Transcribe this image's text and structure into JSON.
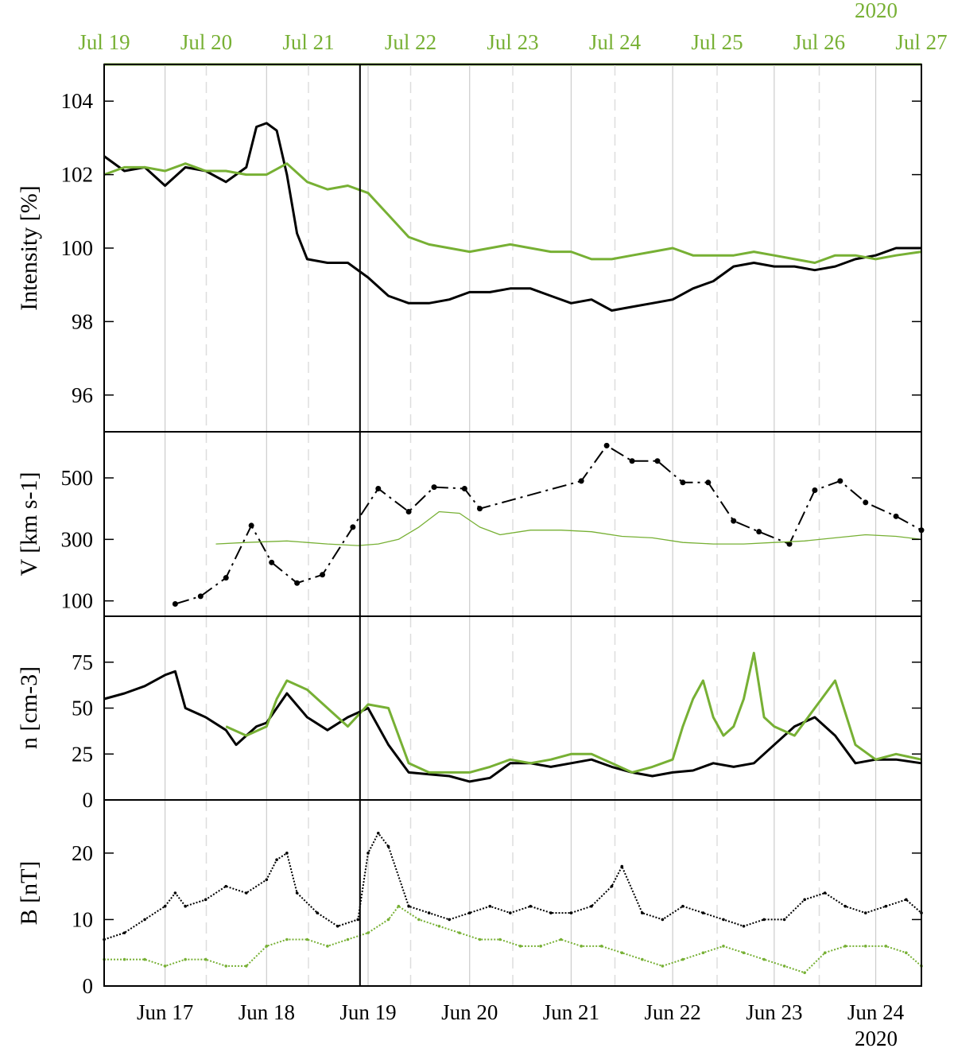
{
  "colors": {
    "series_black": "#000000",
    "series_green": "#77b034",
    "grid_solid": "#cccccc",
    "grid_dashed": "#dddddd",
    "event_line": "#000000"
  },
  "top_axis": {
    "year": "2020",
    "ticks": [
      "Jul 19",
      "Jul 20",
      "Jul 21",
      "Jul 22",
      "Jul 23",
      "Jul 24",
      "Jul 25",
      "Jul 26",
      "Jul 27"
    ]
  },
  "bottom_axis": {
    "year": "2020",
    "ticks": [
      "Jun 17",
      "Jun 18",
      "Jun 19",
      "Jun 20",
      "Jun 21",
      "Jun 22",
      "Jun 23",
      "Jun 24"
    ]
  },
  "chart_data": [
    {
      "type": "line",
      "panel": "intensity",
      "ylabel": "Intensity [%]",
      "ylim": [
        95,
        105
      ],
      "yticks": [
        "96",
        "98",
        "100",
        "102",
        "104"
      ],
      "xlim": [
        16.4,
        24.45
      ],
      "event_line_x": 18.92,
      "series": [
        {
          "color": "black",
          "x": [
            16.4,
            16.6,
            16.8,
            17.0,
            17.2,
            17.4,
            17.6,
            17.7,
            17.8,
            17.9,
            18.0,
            18.1,
            18.2,
            18.3,
            18.4,
            18.6,
            18.8,
            19.0,
            19.2,
            19.4,
            19.6,
            19.8,
            20.0,
            20.2,
            20.4,
            20.6,
            20.8,
            21.0,
            21.2,
            21.4,
            21.6,
            21.8,
            22.0,
            22.2,
            22.4,
            22.6,
            22.8,
            23.0,
            23.2,
            23.4,
            23.6,
            23.8,
            24.0,
            24.2,
            24.45
          ],
          "y": [
            102.5,
            102.1,
            102.2,
            101.7,
            102.2,
            102.1,
            101.8,
            102.0,
            102.2,
            103.3,
            103.4,
            103.2,
            102.0,
            100.4,
            99.7,
            99.6,
            99.6,
            99.2,
            98.7,
            98.5,
            98.5,
            98.6,
            98.8,
            98.8,
            98.9,
            98.9,
            98.7,
            98.5,
            98.6,
            98.3,
            98.4,
            98.5,
            98.6,
            98.9,
            99.1,
            99.5,
            99.6,
            99.5,
            99.5,
            99.4,
            99.5,
            99.7,
            99.8,
            100.0,
            100.0
          ]
        },
        {
          "color": "green",
          "x": [
            16.4,
            16.6,
            16.8,
            17.0,
            17.2,
            17.4,
            17.6,
            17.8,
            18.0,
            18.2,
            18.4,
            18.6,
            18.8,
            19.0,
            19.2,
            19.4,
            19.6,
            19.8,
            20.0,
            20.2,
            20.4,
            20.6,
            20.8,
            21.0,
            21.2,
            21.4,
            21.6,
            21.8,
            22.0,
            22.2,
            22.4,
            22.6,
            22.8,
            23.0,
            23.2,
            23.4,
            23.6,
            23.8,
            24.0,
            24.2,
            24.45
          ],
          "y": [
            102.0,
            102.2,
            102.2,
            102.1,
            102.3,
            102.1,
            102.1,
            102.0,
            102.0,
            102.3,
            101.8,
            101.6,
            101.7,
            101.5,
            100.9,
            100.3,
            100.1,
            100.0,
            99.9,
            100.0,
            100.1,
            100.0,
            99.9,
            99.9,
            99.7,
            99.7,
            99.8,
            99.9,
            100.0,
            99.8,
            99.8,
            99.8,
            99.9,
            99.8,
            99.7,
            99.6,
            99.8,
            99.8,
            99.7,
            99.8,
            99.9
          ]
        }
      ]
    },
    {
      "type": "line",
      "panel": "speed",
      "ylabel": "V [km s-1]",
      "ylim": [
        50,
        650
      ],
      "yticks": [
        "100",
        "300",
        "500"
      ],
      "xlim": [
        16.4,
        24.45
      ],
      "series": [
        {
          "color": "black",
          "style": "dash-dot with dots",
          "x": [
            17.1,
            17.35,
            17.6,
            17.85,
            18.05,
            18.3,
            18.55,
            18.85,
            19.1,
            19.4,
            19.65,
            19.95,
            20.1,
            21.1,
            21.35,
            21.6,
            21.85,
            22.1,
            22.35,
            22.6,
            22.85,
            23.15,
            23.4,
            23.65,
            23.9,
            24.2,
            24.45
          ],
          "y": [
            90,
            115,
            175,
            345,
            225,
            158,
            185,
            340,
            465,
            390,
            470,
            465,
            400,
            490,
            605,
            555,
            555,
            485,
            485,
            360,
            325,
            285,
            460,
            490,
            420,
            375,
            330
          ]
        },
        {
          "color": "green",
          "x": [
            17.5,
            17.8,
            18.2,
            18.6,
            18.9,
            19.1,
            19.3,
            19.5,
            19.7,
            19.9,
            20.1,
            20.3,
            20.6,
            20.9,
            21.2,
            21.5,
            21.8,
            22.1,
            22.4,
            22.7,
            23.0,
            23.3,
            23.6,
            23.9,
            24.2,
            24.45
          ],
          "y": [
            285,
            290,
            295,
            285,
            280,
            285,
            300,
            340,
            390,
            385,
            340,
            315,
            330,
            330,
            325,
            310,
            305,
            290,
            285,
            285,
            290,
            295,
            305,
            315,
            310,
            300
          ]
        }
      ]
    },
    {
      "type": "line",
      "panel": "density",
      "ylabel": "n [cm-3]",
      "ylim": [
        0,
        100
      ],
      "yticks": [
        "0",
        "25",
        "50",
        "75"
      ],
      "xlim": [
        16.4,
        24.45
      ],
      "series": [
        {
          "color": "black",
          "x": [
            16.4,
            16.6,
            16.8,
            17.0,
            17.1,
            17.2,
            17.4,
            17.6,
            17.7,
            17.9,
            18.0,
            18.1,
            18.2,
            18.4,
            18.6,
            18.8,
            19.0,
            19.2,
            19.4,
            19.6,
            19.8,
            20.0,
            20.2,
            20.4,
            20.6,
            20.8,
            21.0,
            21.2,
            21.4,
            21.6,
            21.8,
            22.0,
            22.2,
            22.4,
            22.6,
            22.8,
            23.0,
            23.2,
            23.4,
            23.6,
            23.8,
            24.0,
            24.2,
            24.45
          ],
          "y": [
            55,
            58,
            62,
            68,
            70,
            50,
            45,
            38,
            30,
            40,
            42,
            50,
            58,
            45,
            38,
            45,
            50,
            30,
            15,
            14,
            13,
            10,
            12,
            20,
            20,
            18,
            20,
            22,
            18,
            15,
            13,
            15,
            16,
            20,
            18,
            20,
            30,
            40,
            45,
            35,
            20,
            22,
            22,
            20
          ]
        },
        {
          "color": "green",
          "x": [
            17.6,
            17.8,
            18.0,
            18.1,
            18.2,
            18.4,
            18.6,
            18.8,
            19.0,
            19.2,
            19.4,
            19.6,
            19.8,
            20.0,
            20.2,
            20.4,
            20.6,
            20.8,
            21.0,
            21.2,
            21.4,
            21.6,
            21.8,
            22.0,
            22.1,
            22.2,
            22.3,
            22.4,
            22.5,
            22.6,
            22.7,
            22.8,
            22.9,
            23.0,
            23.2,
            23.4,
            23.6,
            23.8,
            24.0,
            24.2,
            24.45
          ],
          "y": [
            40,
            35,
            40,
            55,
            65,
            60,
            50,
            40,
            52,
            50,
            20,
            15,
            15,
            15,
            18,
            22,
            20,
            22,
            25,
            25,
            20,
            15,
            18,
            22,
            40,
            55,
            65,
            45,
            35,
            40,
            55,
            80,
            45,
            40,
            35,
            50,
            65,
            30,
            22,
            25,
            22
          ]
        }
      ]
    },
    {
      "type": "scatter",
      "panel": "field",
      "ylabel": "B [nT]",
      "ylim": [
        0,
        28
      ],
      "yticks": [
        "0",
        "10",
        "20"
      ],
      "xlim": [
        16.4,
        24.45
      ],
      "series": [
        {
          "color": "black",
          "x": [
            16.4,
            16.6,
            16.8,
            17.0,
            17.1,
            17.2,
            17.4,
            17.6,
            17.8,
            18.0,
            18.1,
            18.2,
            18.3,
            18.5,
            18.7,
            18.9,
            19.0,
            19.1,
            19.2,
            19.4,
            19.6,
            19.8,
            20.0,
            20.2,
            20.4,
            20.6,
            20.8,
            21.0,
            21.2,
            21.4,
            21.5,
            21.7,
            21.9,
            22.1,
            22.3,
            22.5,
            22.7,
            22.9,
            23.1,
            23.3,
            23.5,
            23.7,
            23.9,
            24.1,
            24.3,
            24.45
          ],
          "y": [
            7,
            8,
            10,
            12,
            14,
            12,
            13,
            15,
            14,
            16,
            19,
            20,
            14,
            11,
            9,
            10,
            20,
            23,
            21,
            12,
            11,
            10,
            11,
            12,
            11,
            12,
            11,
            11,
            12,
            15,
            18,
            11,
            10,
            12,
            11,
            10,
            9,
            10,
            10,
            13,
            14,
            12,
            11,
            12,
            13,
            11
          ]
        },
        {
          "color": "green",
          "x": [
            16.4,
            16.6,
            16.8,
            17.0,
            17.2,
            17.4,
            17.6,
            17.8,
            18.0,
            18.2,
            18.4,
            18.6,
            18.8,
            19.0,
            19.2,
            19.3,
            19.5,
            19.7,
            19.9,
            20.1,
            20.3,
            20.5,
            20.7,
            20.9,
            21.1,
            21.3,
            21.5,
            21.7,
            21.9,
            22.1,
            22.3,
            22.5,
            22.7,
            22.9,
            23.1,
            23.3,
            23.5,
            23.7,
            23.9,
            24.1,
            24.3,
            24.45
          ],
          "y": [
            4,
            4,
            4,
            3,
            4,
            4,
            3,
            3,
            6,
            7,
            7,
            6,
            7,
            8,
            10,
            12,
            10,
            9,
            8,
            7,
            7,
            6,
            6,
            7,
            6,
            6,
            5,
            4,
            3,
            4,
            5,
            6,
            5,
            4,
            3,
            2,
            5,
            6,
            6,
            6,
            5,
            3
          ]
        }
      ]
    }
  ]
}
